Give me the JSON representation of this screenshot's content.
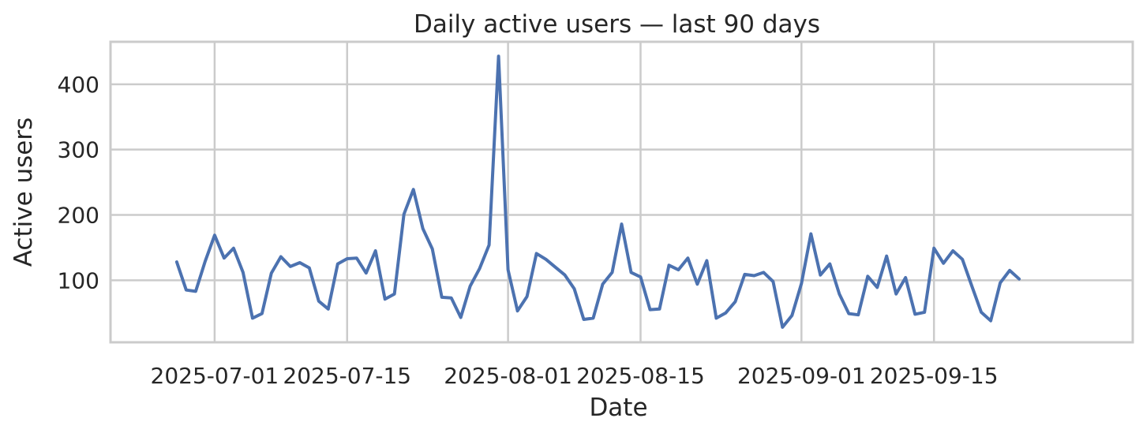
{
  "chart_data": {
    "type": "line",
    "title": "Daily active users — last 90 days",
    "xlabel": "Date",
    "ylabel": "Active users",
    "xlim": [
      "2025-06-20",
      "2025-10-06"
    ],
    "ylim": [
      5,
      465
    ],
    "x_ticks": [
      "2025-07-01",
      "2025-07-15",
      "2025-08-01",
      "2025-08-15",
      "2025-09-01",
      "2025-09-15"
    ],
    "y_ticks": [
      100,
      200,
      300,
      400
    ],
    "grid": true,
    "series": [
      {
        "color": "#4c72b0",
        "points": [
          [
            "2025-06-27",
            128
          ],
          [
            "2025-06-28",
            85
          ],
          [
            "2025-06-29",
            83
          ],
          [
            "2025-06-30",
            129
          ],
          [
            "2025-07-01",
            169
          ],
          [
            "2025-07-02",
            134
          ],
          [
            "2025-07-03",
            149
          ],
          [
            "2025-07-04",
            112
          ],
          [
            "2025-07-05",
            42
          ],
          [
            "2025-07-06",
            49
          ],
          [
            "2025-07-07",
            111
          ],
          [
            "2025-07-08",
            136
          ],
          [
            "2025-07-09",
            121
          ],
          [
            "2025-07-10",
            127
          ],
          [
            "2025-07-11",
            119
          ],
          [
            "2025-07-12",
            68
          ],
          [
            "2025-07-13",
            56
          ],
          [
            "2025-07-14",
            125
          ],
          [
            "2025-07-15",
            133
          ],
          [
            "2025-07-16",
            134
          ],
          [
            "2025-07-17",
            111
          ],
          [
            "2025-07-18",
            145
          ],
          [
            "2025-07-19",
            71
          ],
          [
            "2025-07-20",
            79
          ],
          [
            "2025-07-21",
            201
          ],
          [
            "2025-07-22",
            239
          ],
          [
            "2025-07-23",
            179
          ],
          [
            "2025-07-24",
            148
          ],
          [
            "2025-07-25",
            74
          ],
          [
            "2025-07-26",
            73
          ],
          [
            "2025-07-27",
            43
          ],
          [
            "2025-07-28",
            91
          ],
          [
            "2025-07-29",
            118
          ],
          [
            "2025-07-30",
            154
          ],
          [
            "2025-07-31",
            443
          ],
          [
            "2025-08-01",
            116
          ],
          [
            "2025-08-02",
            53
          ],
          [
            "2025-08-03",
            75
          ],
          [
            "2025-08-04",
            141
          ],
          [
            "2025-08-05",
            132
          ],
          [
            "2025-08-06",
            120
          ],
          [
            "2025-08-07",
            108
          ],
          [
            "2025-08-08",
            87
          ],
          [
            "2025-08-09",
            40
          ],
          [
            "2025-08-10",
            42
          ],
          [
            "2025-08-11",
            94
          ],
          [
            "2025-08-12",
            112
          ],
          [
            "2025-08-13",
            186
          ],
          [
            "2025-08-14",
            112
          ],
          [
            "2025-08-15",
            105
          ],
          [
            "2025-08-16",
            55
          ],
          [
            "2025-08-17",
            56
          ],
          [
            "2025-08-18",
            123
          ],
          [
            "2025-08-19",
            116
          ],
          [
            "2025-08-20",
            134
          ],
          [
            "2025-08-21",
            94
          ],
          [
            "2025-08-22",
            130
          ],
          [
            "2025-08-23",
            42
          ],
          [
            "2025-08-24",
            50
          ],
          [
            "2025-08-25",
            67
          ],
          [
            "2025-08-26",
            109
          ],
          [
            "2025-08-27",
            107
          ],
          [
            "2025-08-28",
            112
          ],
          [
            "2025-08-29",
            98
          ],
          [
            "2025-08-30",
            28
          ],
          [
            "2025-08-31",
            46
          ],
          [
            "2025-09-01",
            95
          ],
          [
            "2025-09-02",
            171
          ],
          [
            "2025-09-03",
            108
          ],
          [
            "2025-09-04",
            125
          ],
          [
            "2025-09-05",
            79
          ],
          [
            "2025-09-06",
            49
          ],
          [
            "2025-09-07",
            47
          ],
          [
            "2025-09-08",
            106
          ],
          [
            "2025-09-09",
            89
          ],
          [
            "2025-09-10",
            137
          ],
          [
            "2025-09-11",
            79
          ],
          [
            "2025-09-12",
            104
          ],
          [
            "2025-09-13",
            48
          ],
          [
            "2025-09-14",
            51
          ],
          [
            "2025-09-15",
            149
          ],
          [
            "2025-09-16",
            126
          ],
          [
            "2025-09-17",
            145
          ],
          [
            "2025-09-18",
            132
          ],
          [
            "2025-09-19",
            91
          ],
          [
            "2025-09-20",
            51
          ],
          [
            "2025-09-21",
            38
          ],
          [
            "2025-09-22",
            96
          ],
          [
            "2025-09-23",
            115
          ],
          [
            "2025-09-24",
            102
          ]
        ]
      }
    ]
  }
}
